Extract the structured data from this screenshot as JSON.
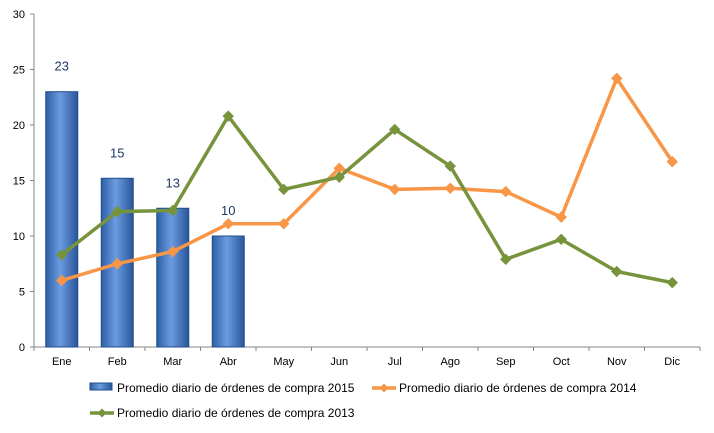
{
  "chart_data": {
    "type": "bar+line",
    "categories": [
      "Ene",
      "Feb",
      "Mar",
      "Abr",
      "May",
      "Jun",
      "Jul",
      "Ago",
      "Sep",
      "Oct",
      "Nov",
      "Dic"
    ],
    "ylim": [
      0,
      30
    ],
    "yticks": [
      "0",
      "5",
      "10",
      "15",
      "20",
      "25",
      "30"
    ],
    "grid": false,
    "legend_position": "bottom",
    "series": [
      {
        "name": "Promedio diario de órdenes de compra 2015",
        "type": "bar",
        "color": "#4472c4",
        "values": [
          23,
          15.2,
          12.5,
          10,
          null,
          null,
          null,
          null,
          null,
          null,
          null,
          null
        ],
        "data_labels": [
          "23",
          "15",
          "13",
          "10"
        ]
      },
      {
        "name": "Promedio diario de órdenes de compra 2014",
        "type": "line",
        "color": "#f79646",
        "marker": "diamond",
        "values": [
          6,
          7.5,
          8.6,
          11.1,
          11.1,
          16.1,
          14.2,
          14.3,
          14,
          11.7,
          24.2,
          16.7
        ]
      },
      {
        "name": "Promedio diario de órdenes de compra 2013",
        "type": "line",
        "color": "#77933c",
        "marker": "diamond",
        "values": [
          8.3,
          12.2,
          12.3,
          20.8,
          14.2,
          15.3,
          19.6,
          16.3,
          7.9,
          9.7,
          6.8,
          5.8
        ]
      }
    ]
  }
}
